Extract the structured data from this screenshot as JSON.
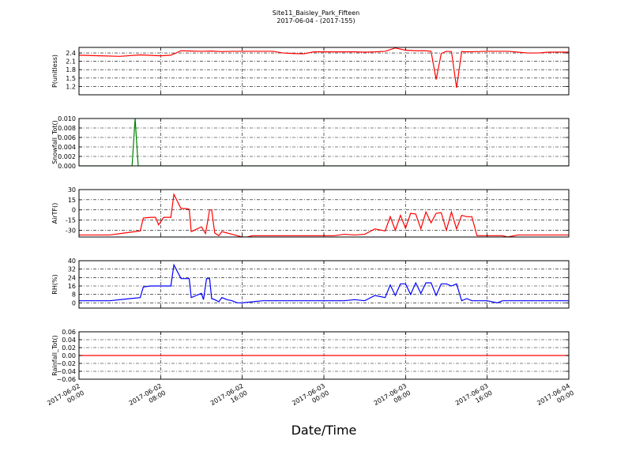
{
  "chart_data": [
    {
      "type": "line",
      "title": "Site11_Baisley_Park_Fifteen",
      "subtitle": "2017-06-04 - (2017-155)",
      "xlabel": "Date/Time",
      "x_ticks": [
        "2017-06-02\n00:00",
        "2017-06-02\n08:00",
        "2017-06-02\n16:00",
        "2017-06-03\n00:00",
        "2017-06-03\n08:00",
        "2017-06-03\n16:00",
        "2017-06-04\n00:00"
      ],
      "x_range_hours": [
        0,
        48
      ],
      "grid": true,
      "panels": [
        {
          "ylabel": "P(unitless)",
          "ylim": [
            0.9,
            2.6
          ],
          "yticks": [
            "2.4",
            "2.1",
            "1.8",
            "1.5",
            "1.2"
          ],
          "ytick_values": [
            2.4,
            2.1,
            1.8,
            1.5,
            1.2
          ],
          "color": "#ff0000",
          "series": [
            {
              "x": [
                0,
                2,
                4,
                6,
                8,
                9,
                10,
                11,
                12,
                13,
                14,
                15,
                16,
                17,
                18,
                19,
                20,
                21,
                22,
                23,
                24,
                25,
                26,
                27,
                28,
                29,
                30,
                31,
                32,
                33,
                34,
                34.5,
                35,
                35.5,
                36,
                36.5,
                37,
                37.5,
                38,
                39,
                40,
                41,
                42,
                43,
                44,
                45,
                46,
                47,
                48
              ],
              "y": [
                2.32,
                2.3,
                2.28,
                2.33,
                2.3,
                2.32,
                2.48,
                2.47,
                2.46,
                2.47,
                2.45,
                2.46,
                2.46,
                2.46,
                2.46,
                2.46,
                2.4,
                2.38,
                2.37,
                2.44,
                2.44,
                2.44,
                2.44,
                2.44,
                2.43,
                2.44,
                2.46,
                2.58,
                2.5,
                2.48,
                2.48,
                2.46,
                1.45,
                2.38,
                2.46,
                2.45,
                1.15,
                2.45,
                2.44,
                2.45,
                2.46,
                2.46,
                2.46,
                2.43,
                2.4,
                2.4,
                2.43,
                2.43,
                2.43
              ]
            }
          ]
        },
        {
          "ylabel": "Snowfall_Tot()",
          "ylim": [
            0,
            0.01
          ],
          "yticks": [
            "0.010",
            "0.008",
            "0.006",
            "0.004",
            "0.002",
            "0.000"
          ],
          "ytick_values": [
            0.01,
            0.008,
            0.006,
            0.004,
            0.002,
            0.0
          ],
          "color": "#008000",
          "series": [
            {
              "x": [
                0,
                5.2,
                5.5,
                5.8,
                48
              ],
              "y": [
                0,
                0,
                0.01,
                0,
                0
              ]
            }
          ]
        },
        {
          "ylabel": "AirTF()",
          "ylim": [
            -40,
            30
          ],
          "yticks": [
            "30",
            "15",
            "0",
            "-15",
            "-30"
          ],
          "ytick_values": [
            30,
            15,
            0,
            -15,
            -30
          ],
          "color": "#ff0000",
          "series": [
            {
              "x": [
                0,
                3,
                4.5,
                5,
                6,
                6.3,
                7,
                7.5,
                7.8,
                8.3,
                9,
                9.3,
                10,
                10.5,
                10.8,
                11,
                11.3,
                12,
                12.4,
                12.8,
                13,
                13.3,
                13.7,
                14,
                14.5,
                15,
                15.5,
                16,
                16.5,
                17,
                18,
                19,
                20,
                21,
                22,
                23,
                24,
                25,
                26,
                27,
                28,
                29,
                30,
                30.5,
                31,
                31.5,
                32,
                32.5,
                33,
                33.5,
                34,
                34.5,
                35,
                35.5,
                36,
                36.5,
                37,
                37.5,
                38,
                38.5,
                39,
                40,
                41,
                41.5,
                42,
                43,
                44,
                45,
                46,
                47,
                48
              ],
              "y": [
                -37,
                -37,
                -34,
                -33,
                -31,
                -12,
                -11,
                -11,
                -22,
                -11,
                -11,
                23,
                2,
                2,
                1,
                -32,
                -30,
                -25,
                -35,
                0,
                0,
                -34,
                -38,
                -32,
                -34,
                -36,
                -38,
                -40,
                -40,
                -38,
                -38,
                -38,
                -38,
                -38,
                -38,
                -38,
                -38,
                -38,
                -36,
                -37,
                -36,
                -28,
                -31,
                -10,
                -30,
                -8,
                -27,
                -5,
                -6,
                -28,
                -3,
                -19,
                -5,
                -4,
                -30,
                -3,
                -28,
                -8,
                -10,
                -10,
                -38,
                -38,
                -38,
                -38,
                -40,
                -37,
                -37,
                -37,
                -37,
                -37,
                -37
              ]
            }
          ]
        },
        {
          "ylabel": "RH(%)",
          "ylim": [
            -5,
            40
          ],
          "yticks": [
            "40",
            "32",
            "24",
            "16",
            "8",
            "0"
          ],
          "ytick_values": [
            40,
            32,
            24,
            16,
            8,
            0
          ],
          "color": "#0000ff",
          "series": [
            {
              "x": [
                0,
                3,
                5,
                6,
                6.3,
                7,
                7.5,
                8,
                9,
                9.3,
                10,
                10.5,
                10.8,
                11,
                11.5,
                12,
                12.2,
                12.5,
                12.8,
                13,
                13.3,
                13.7,
                14,
                14.5,
                15,
                15.5,
                16,
                17,
                18,
                19,
                20,
                21,
                22,
                23,
                24,
                25,
                26,
                27,
                28,
                29,
                30,
                30.5,
                31,
                31.5,
                32,
                32.5,
                33,
                33.5,
                34,
                34.5,
                35,
                35.5,
                36,
                36.5,
                37,
                37.5,
                38,
                38.5,
                39,
                40,
                41,
                41.5,
                42,
                43,
                44,
                45,
                46,
                47,
                48
              ],
              "y": [
                2,
                2,
                4,
                5,
                15,
                16,
                16,
                16,
                16,
                36,
                23,
                23,
                23,
                5,
                7,
                9,
                3,
                23,
                23,
                4,
                3,
                1,
                5,
                3,
                2,
                0,
                0,
                1,
                2,
                2,
                2,
                2,
                2,
                2,
                2,
                2,
                2,
                3,
                2,
                7,
                5,
                17,
                7,
                18,
                18,
                8,
                19,
                9,
                19,
                19,
                7,
                18,
                18,
                16,
                18,
                2,
                4,
                2,
                2,
                2,
                0,
                2,
                2,
                2,
                2,
                2,
                2,
                2,
                2
              ]
            }
          ]
        },
        {
          "ylabel": "Rainfall_Tot()",
          "ylim": [
            -0.06,
            0.06
          ],
          "yticks": [
            "0.06",
            "0.04",
            "0.02",
            "0.00",
            "−0.02",
            "−0.04",
            "−0.06"
          ],
          "ytick_values": [
            0.06,
            0.04,
            0.02,
            0.0,
            -0.02,
            -0.04,
            -0.06
          ],
          "color": "#ff0000",
          "series": [
            {
              "x": [
                0,
                48
              ],
              "y": [
                0,
                0
              ]
            }
          ]
        }
      ]
    }
  ]
}
